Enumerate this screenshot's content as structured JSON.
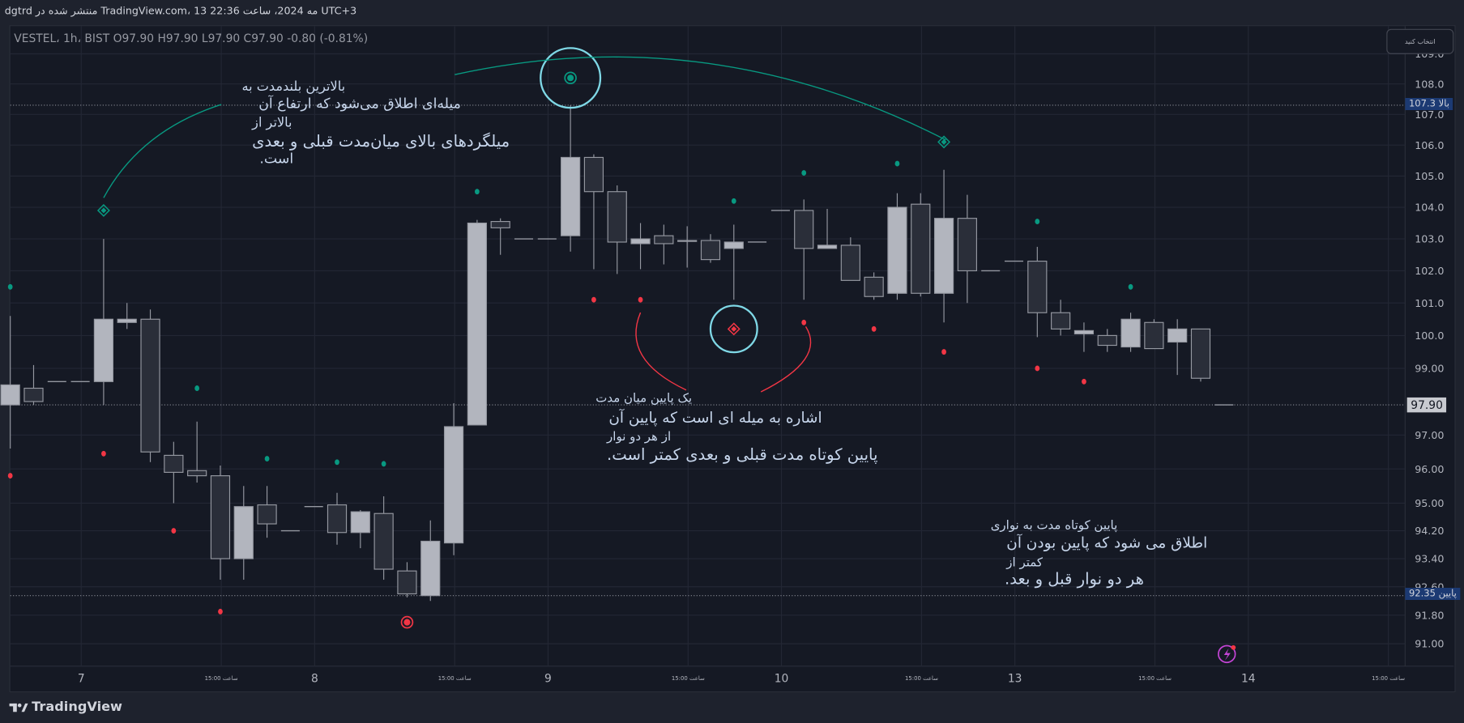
{
  "header": {
    "published": "dgtrd منتشر شده در TradingView.com، 13 مه 2024، ساعت 22:36 UTC+3"
  },
  "legend": {
    "text": "VESTEL، 1h، BIST O97.90 H97.90 L97.90 C97.90 -0.80 (-0.81%)"
  },
  "select_button": {
    "label": "انتخاب کنید"
  },
  "footer": {
    "logo": "TradingView"
  },
  "colors": {
    "bg": "#151924",
    "grid": "#232734",
    "up_fill": "#b2b5be",
    "down_fill": "#2a2e39",
    "wick": "#9598a1",
    "green": "#089981",
    "red": "#f23645",
    "cyan": "#7fd8e6",
    "badge_blue": "#1c3a73"
  },
  "annotations": {
    "high_note": [
      "بالاترین بلندمدت به",
      "میله‌ای اطلاق می‌شود که ارتفاع آن",
      "بالاتر از",
      "میلگردهای بالای میان‌مدت قبلی و بعدی",
      "است."
    ],
    "mid_low_note": [
      "یک پایین میان مدت",
      "اشاره به میله ای است که پایین آن",
      "از هر دو نوار",
      "پایین کوتاه مدت قبلی و بعدی کمتر است."
    ],
    "short_low_note": [
      "پایین کوتاه مدت به نواری",
      "اطلاق می شود که پایین بودن آن",
      "کمتر از",
      "هر دو نوار قبل و بعد."
    ]
  },
  "chart_data": {
    "type": "candlestick",
    "symbol": "VESTEL",
    "interval": "1h",
    "scale": "log",
    "ylim": [
      90.6,
      109.2
    ],
    "price_ticks": [
      "109.0",
      "108.0",
      "107.0",
      "106.0",
      "105.0",
      "104.0",
      "103.0",
      "102.0",
      "101.0",
      "100.0",
      "99.00",
      "97.00",
      "96.00",
      "95.00",
      "94.20",
      "93.40",
      "92.60",
      "91.80",
      "91.00"
    ],
    "time_ticks": [
      {
        "bar": 3,
        "label": "7"
      },
      {
        "bar": 9,
        "label": "15:00 ساعت"
      },
      {
        "bar": 13,
        "label": "8"
      },
      {
        "bar": 19,
        "label": "15:00 ساعت"
      },
      {
        "bar": 23,
        "label": "9"
      },
      {
        "bar": 29,
        "label": "15:00 ساعت"
      },
      {
        "bar": 33,
        "label": "10"
      },
      {
        "bar": 39,
        "label": "15:00 ساعت"
      },
      {
        "bar": 43,
        "label": "13"
      },
      {
        "bar": 49,
        "label": "15:00 ساعت"
      },
      {
        "bar": 53,
        "label": "14"
      },
      {
        "bar": 59,
        "label": "15:00 ساعت"
      }
    ],
    "current_price": {
      "value": 97.9,
      "label": "97.90"
    },
    "levels": [
      {
        "name": "high",
        "value": 107.3,
        "label": "بالا 107.3"
      },
      {
        "name": "low",
        "value": 92.35,
        "label": "پایین 92.35"
      }
    ],
    "ohlc": [
      [
        97.9,
        100.6,
        96.6,
        98.5
      ],
      [
        98.4,
        99.1,
        97.9,
        98.0
      ],
      [
        98.6,
        98.6,
        98.6,
        98.6
      ],
      [
        98.6,
        98.6,
        98.6,
        98.6
      ],
      [
        98.6,
        103.0,
        97.9,
        100.5
      ],
      [
        100.4,
        101.0,
        100.2,
        100.5
      ],
      [
        100.5,
        100.8,
        96.2,
        96.5
      ],
      [
        96.4,
        96.8,
        95.0,
        95.9
      ],
      [
        95.95,
        97.4,
        95.6,
        95.8
      ],
      [
        95.8,
        96.1,
        92.8,
        93.4
      ],
      [
        93.4,
        95.5,
        92.8,
        94.9
      ],
      [
        94.95,
        95.5,
        94.0,
        94.4
      ],
      [
        94.2,
        94.2,
        94.2,
        94.2
      ],
      [
        94.9,
        94.9,
        94.9,
        94.9
      ],
      [
        94.95,
        95.3,
        93.8,
        94.15
      ],
      [
        94.15,
        94.8,
        93.7,
        94.75
      ],
      [
        94.7,
        95.2,
        92.8,
        93.1
      ],
      [
        93.05,
        93.3,
        92.3,
        92.4
      ],
      [
        92.35,
        94.5,
        92.2,
        93.9
      ],
      [
        93.85,
        97.95,
        93.5,
        97.25
      ],
      [
        97.3,
        103.6,
        97.3,
        103.5
      ],
      [
        103.55,
        103.65,
        102.5,
        103.35
      ],
      [
        103.0,
        103.0,
        103.0,
        103.0
      ],
      [
        103.0,
        103.0,
        103.0,
        103.0
      ],
      [
        103.1,
        107.3,
        102.6,
        105.6
      ],
      [
        105.6,
        105.7,
        102.05,
        104.5
      ],
      [
        104.5,
        104.7,
        101.9,
        102.9
      ],
      [
        102.85,
        103.5,
        102.05,
        103.0
      ],
      [
        103.1,
        103.45,
        102.2,
        102.85
      ],
      [
        102.95,
        103.4,
        102.1,
        102.95
      ],
      [
        102.95,
        103.15,
        102.25,
        102.35
      ],
      [
        102.7,
        103.45,
        101.1,
        102.9
      ],
      [
        102.9,
        102.9,
        102.9,
        102.9
      ],
      [
        103.9,
        103.9,
        103.9,
        103.9
      ],
      [
        103.9,
        104.25,
        101.1,
        102.7
      ],
      [
        102.7,
        103.95,
        102.7,
        102.8
      ],
      [
        102.8,
        103.05,
        101.7,
        101.7
      ],
      [
        101.8,
        101.95,
        101.1,
        101.2
      ],
      [
        101.3,
        104.45,
        101.1,
        104.0
      ],
      [
        104.1,
        104.45,
        101.2,
        101.3
      ],
      [
        101.3,
        105.2,
        100.4,
        103.65
      ],
      [
        103.65,
        104.4,
        101.0,
        102.0
      ],
      [
        102.0,
        102.0,
        102.0,
        102.0
      ],
      [
        102.3,
        102.3,
        102.3,
        102.3
      ],
      [
        102.3,
        102.75,
        99.95,
        100.7
      ],
      [
        100.7,
        101.1,
        100.0,
        100.2
      ],
      [
        100.05,
        100.4,
        99.5,
        100.15
      ],
      [
        100.0,
        100.2,
        99.5,
        99.7
      ],
      [
        99.65,
        100.7,
        99.5,
        100.5
      ],
      [
        100.4,
        100.5,
        99.6,
        99.6
      ],
      [
        99.8,
        100.5,
        98.8,
        100.2
      ],
      [
        100.2,
        100.2,
        98.6,
        98.7
      ],
      [
        97.9,
        97.9,
        97.9,
        97.9
      ]
    ],
    "markers": [
      {
        "bar": 0,
        "price": 101.5,
        "kind": "green-dot"
      },
      {
        "bar": 8,
        "price": 98.4,
        "kind": "green-dot"
      },
      {
        "bar": 11,
        "price": 96.3,
        "kind": "green-dot"
      },
      {
        "bar": 14,
        "price": 96.2,
        "kind": "green-dot"
      },
      {
        "bar": 16,
        "price": 96.15,
        "kind": "green-dot"
      },
      {
        "bar": 20,
        "price": 104.5,
        "kind": "green-dot"
      },
      {
        "bar": 31,
        "price": 104.2,
        "kind": "green-dot"
      },
      {
        "bar": 34,
        "price": 105.1,
        "kind": "green-dot"
      },
      {
        "bar": 38,
        "price": 105.4,
        "kind": "green-dot"
      },
      {
        "bar": 44,
        "price": 103.55,
        "kind": "green-dot"
      },
      {
        "bar": 48,
        "price": 101.5,
        "kind": "green-dot"
      },
      {
        "bar": 4,
        "price": 103.9,
        "kind": "green-diamond"
      },
      {
        "bar": 40,
        "price": 106.1,
        "kind": "green-diamond"
      },
      {
        "bar": 24,
        "price": 108.2,
        "kind": "green-circle"
      },
      {
        "bar": 0,
        "price": 95.8,
        "kind": "red-dot"
      },
      {
        "bar": 4,
        "price": 96.45,
        "kind": "red-dot"
      },
      {
        "bar": 7,
        "price": 94.2,
        "kind": "red-dot"
      },
      {
        "bar": 9,
        "price": 91.9,
        "kind": "red-dot"
      },
      {
        "bar": 25,
        "price": 101.1,
        "kind": "red-dot"
      },
      {
        "bar": 27,
        "price": 101.1,
        "kind": "red-dot"
      },
      {
        "bar": 34,
        "price": 100.4,
        "kind": "red-dot"
      },
      {
        "bar": 37,
        "price": 100.2,
        "kind": "red-dot"
      },
      {
        "bar": 40,
        "price": 99.5,
        "kind": "red-dot"
      },
      {
        "bar": 44,
        "price": 99.0,
        "kind": "red-dot"
      },
      {
        "bar": 46,
        "price": 98.6,
        "kind": "red-dot"
      },
      {
        "bar": 17,
        "price": 91.6,
        "kind": "red-circle"
      },
      {
        "bar": 31,
        "price": 100.2,
        "kind": "red-diamond"
      }
    ]
  }
}
